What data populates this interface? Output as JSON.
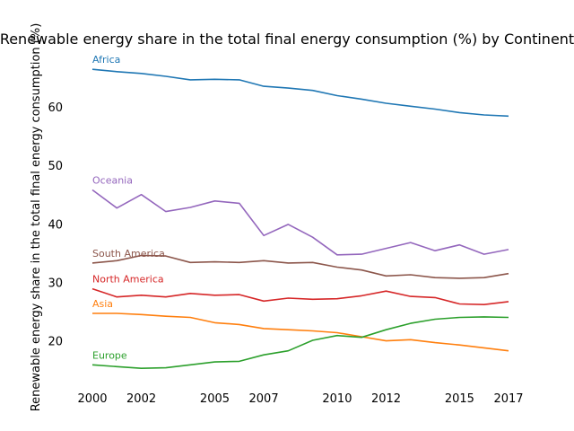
{
  "chart_data": {
    "type": "line",
    "title": "Renewable energy share in the total final energy consumption (%) by Continent",
    "xlabel": "",
    "ylabel": "Renewable energy share in the total final energy consumption (%)",
    "xlim": [
      2000,
      2017
    ],
    "ylim": [
      11.5,
      69.5
    ],
    "x_ticks": [
      2000,
      2002,
      2005,
      2007,
      2010,
      2012,
      2015,
      2017
    ],
    "y_ticks": [
      20,
      30,
      40,
      50,
      60
    ],
    "grid": false,
    "legend": "inline labels at series start",
    "x": [
      2000,
      2001,
      2002,
      2003,
      2004,
      2005,
      2006,
      2007,
      2008,
      2009,
      2010,
      2011,
      2012,
      2013,
      2014,
      2015,
      2016,
      2017
    ],
    "series": [
      {
        "name": "Africa",
        "color": "#1f77b4",
        "values": [
          66.4,
          66.0,
          65.7,
          65.2,
          64.6,
          64.7,
          64.6,
          63.5,
          63.2,
          62.8,
          61.9,
          61.3,
          60.6,
          60.1,
          59.6,
          59.0,
          58.6,
          58.4
        ]
      },
      {
        "name": "Oceania",
        "color": "#9467bd",
        "values": [
          45.8,
          42.7,
          45.0,
          42.1,
          42.8,
          43.9,
          43.5,
          38.0,
          39.9,
          37.7,
          34.7,
          34.8,
          35.8,
          36.8,
          35.4,
          36.4,
          34.8,
          35.6
        ]
      },
      {
        "name": "South America",
        "color": "#8c564b",
        "values": [
          33.3,
          33.7,
          34.6,
          34.5,
          33.4,
          33.5,
          33.4,
          33.7,
          33.3,
          33.4,
          32.6,
          32.1,
          31.1,
          31.3,
          30.8,
          30.7,
          30.8,
          31.5
        ]
      },
      {
        "name": "North America",
        "color": "#d62728",
        "values": [
          28.9,
          27.5,
          27.8,
          27.5,
          28.1,
          27.8,
          27.9,
          26.8,
          27.3,
          27.1,
          27.2,
          27.7,
          28.5,
          27.6,
          27.4,
          26.3,
          26.2,
          26.7
        ]
      },
      {
        "name": "Asia",
        "color": "#ff7f0e",
        "values": [
          24.7,
          24.7,
          24.5,
          24.2,
          24.0,
          23.1,
          22.8,
          22.1,
          21.9,
          21.7,
          21.4,
          20.7,
          20.0,
          20.2,
          19.7,
          19.3,
          18.8,
          18.3
        ]
      },
      {
        "name": "Europe",
        "color": "#2ca02c",
        "values": [
          15.9,
          15.6,
          15.3,
          15.4,
          15.9,
          16.4,
          16.5,
          17.6,
          18.3,
          20.1,
          20.9,
          20.6,
          21.9,
          23.0,
          23.7,
          24.0,
          24.1,
          24.0
        ]
      }
    ]
  }
}
